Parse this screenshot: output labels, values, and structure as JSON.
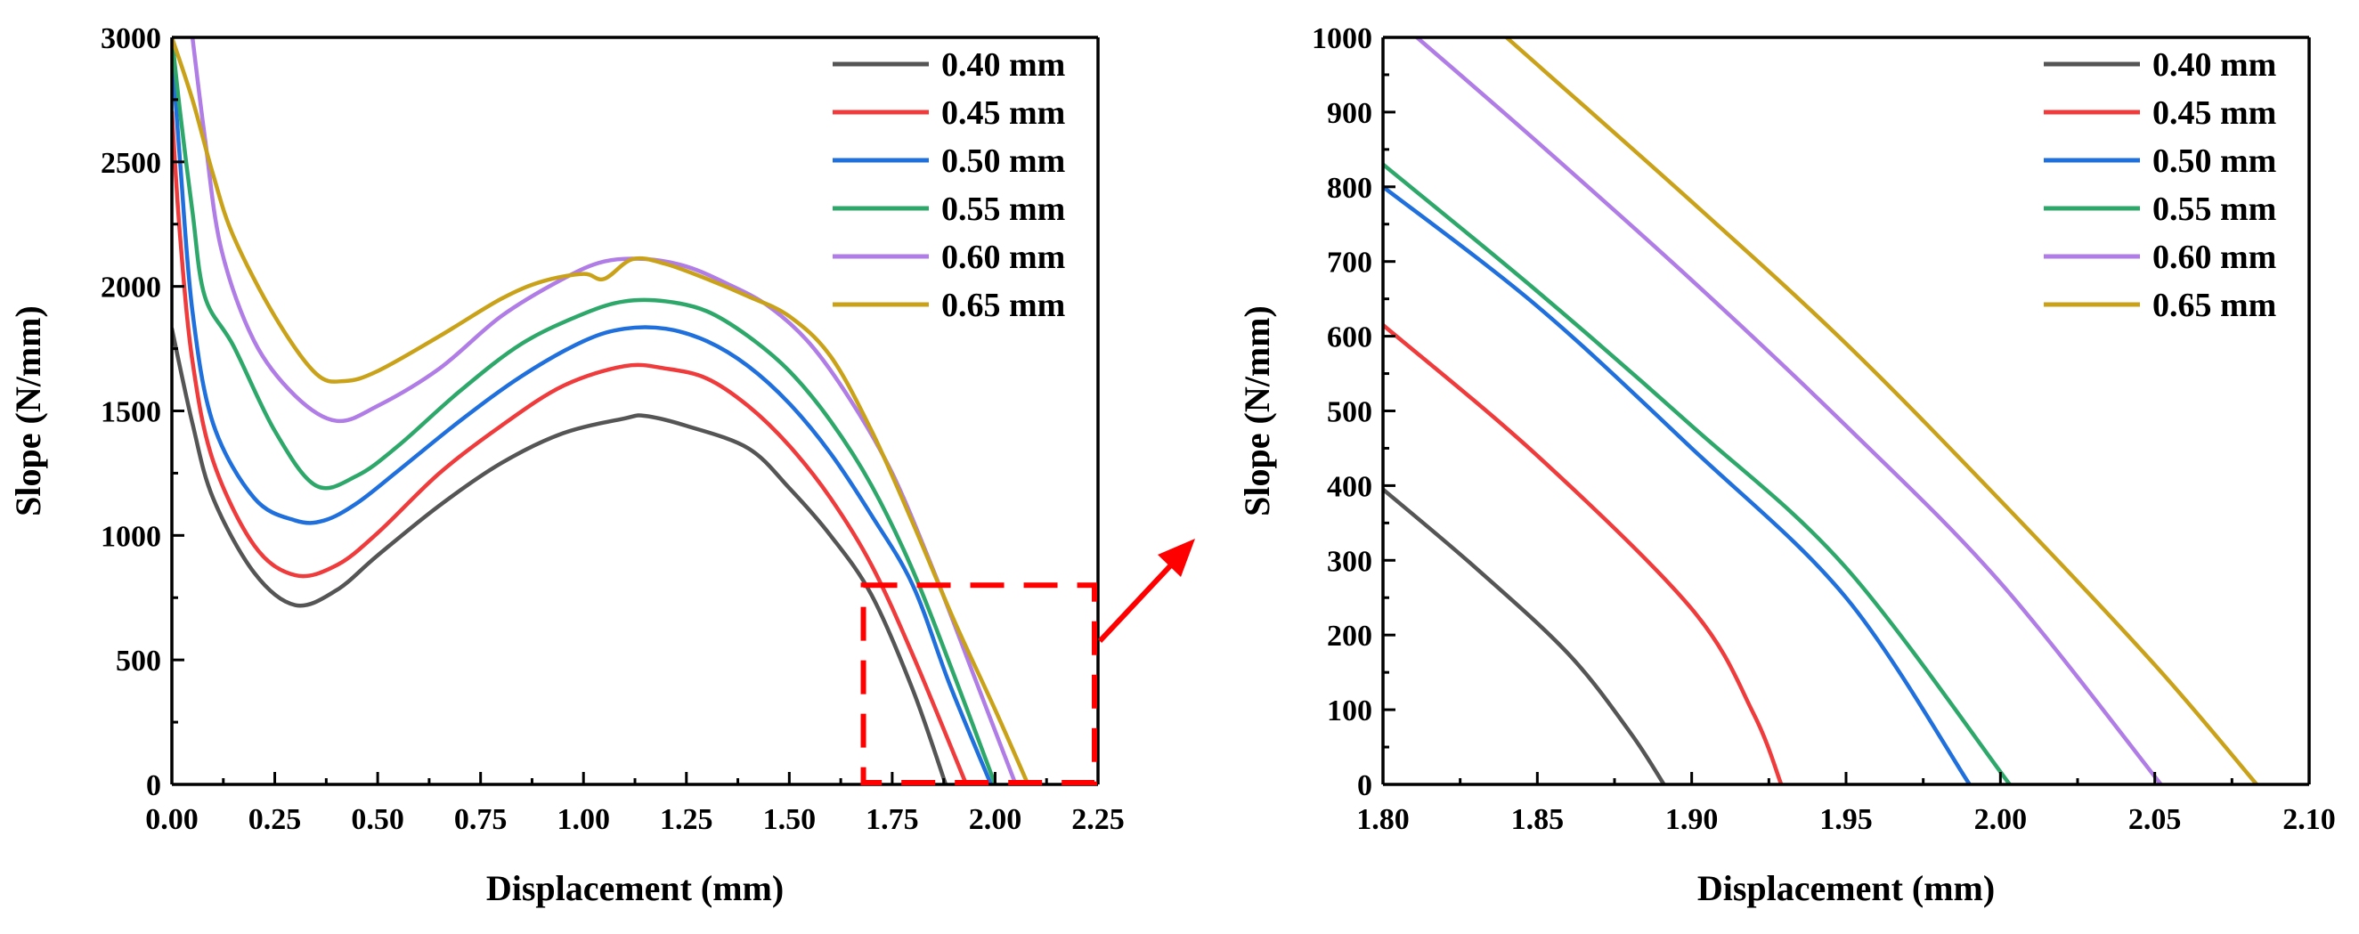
{
  "colors": {
    "s040": "#555555",
    "s045": "#ef3b3b",
    "s050": "#1f6fdc",
    "s055": "#2ea86a",
    "s060": "#b07ce6",
    "s065": "#c9a21a",
    "zoom": "#ff0000"
  },
  "chart_data": [
    {
      "type": "line",
      "xlabel": "Displacement (mm)",
      "ylabel": "Slope (N/mm)",
      "xlim": [
        0,
        2.25
      ],
      "ylim": [
        0,
        3000
      ],
      "xticks": [
        "0.00",
        "0.25",
        "0.50",
        "0.75",
        "1.00",
        "1.25",
        "1.50",
        "1.75",
        "2.00",
        "2.25"
      ],
      "yticks": [
        "0",
        "500",
        "1000",
        "1500",
        "2000",
        "2500",
        "3000"
      ],
      "legend": "top-right",
      "series": [
        {
          "name": "0.40 mm",
          "color": "#555555",
          "x": [
            0.0,
            0.05,
            0.1,
            0.2,
            0.3,
            0.4,
            0.5,
            0.65,
            0.8,
            0.95,
            1.1,
            1.15,
            1.25,
            1.4,
            1.5,
            1.6,
            1.7,
            1.8,
            1.88
          ],
          "y": [
            1830,
            1450,
            1150,
            850,
            720,
            780,
            920,
            1120,
            1290,
            1410,
            1470,
            1480,
            1440,
            1350,
            1190,
            1000,
            760,
            380,
            0
          ]
        },
        {
          "name": "0.45 mm",
          "color": "#ef3b3b",
          "x": [
            0.0,
            0.02,
            0.05,
            0.1,
            0.2,
            0.3,
            0.4,
            0.5,
            0.65,
            0.8,
            0.95,
            1.1,
            1.2,
            1.3,
            1.4,
            1.5,
            1.6,
            1.7,
            1.8,
            1.93
          ],
          "y": [
            2700,
            2200,
            1700,
            1300,
            960,
            840,
            880,
            1010,
            1250,
            1440,
            1600,
            1680,
            1670,
            1630,
            1520,
            1360,
            1150,
            880,
            520,
            0
          ]
        },
        {
          "name": "0.50 mm",
          "color": "#1f6fdc",
          "x": [
            0.0,
            0.02,
            0.05,
            0.1,
            0.2,
            0.3,
            0.37,
            0.45,
            0.55,
            0.7,
            0.85,
            1.0,
            1.1,
            1.2,
            1.3,
            1.4,
            1.5,
            1.6,
            1.7,
            1.8,
            1.89,
            1.99
          ],
          "y": [
            2950,
            2500,
            1900,
            1450,
            1150,
            1060,
            1060,
            1130,
            1260,
            1460,
            1640,
            1780,
            1830,
            1830,
            1780,
            1680,
            1530,
            1330,
            1080,
            800,
            400,
            0
          ]
        },
        {
          "name": "0.55 mm",
          "color": "#2ea86a",
          "x": [
            0.0,
            0.02,
            0.05,
            0.08,
            0.15,
            0.25,
            0.35,
            0.45,
            0.55,
            0.7,
            0.85,
            1.0,
            1.1,
            1.2,
            1.3,
            1.4,
            1.5,
            1.6,
            1.7,
            1.8,
            1.9,
            2.0
          ],
          "y": [
            3000,
            2700,
            2300,
            1960,
            1760,
            1420,
            1200,
            1240,
            1360,
            1580,
            1770,
            1890,
            1940,
            1940,
            1900,
            1800,
            1660,
            1460,
            1200,
            860,
            440,
            0
          ]
        },
        {
          "name": "0.60 mm",
          "color": "#b07ce6",
          "x": [
            0.05,
            0.08,
            0.12,
            0.2,
            0.3,
            0.4,
            0.5,
            0.65,
            0.8,
            0.95,
            1.05,
            1.15,
            1.25,
            1.35,
            1.45,
            1.55,
            1.65,
            1.75,
            1.85,
            1.95,
            2.05
          ],
          "y": [
            3000,
            2600,
            2150,
            1780,
            1560,
            1460,
            1520,
            1670,
            1880,
            2030,
            2100,
            2110,
            2080,
            2010,
            1920,
            1770,
            1540,
            1250,
            860,
            430,
            0
          ]
        },
        {
          "name": "0.65 mm",
          "color": "#c9a21a",
          "x": [
            0.0,
            0.05,
            0.1,
            0.15,
            0.25,
            0.35,
            0.42,
            0.5,
            0.65,
            0.8,
            0.9,
            1.0,
            1.05,
            1.12,
            1.2,
            1.3,
            1.4,
            1.5,
            1.6,
            1.7,
            1.8,
            1.9,
            2.0,
            2.08
          ],
          "y": [
            3000,
            2750,
            2450,
            2200,
            1880,
            1650,
            1620,
            1660,
            1800,
            1950,
            2020,
            2050,
            2030,
            2110,
            2090,
            2030,
            1960,
            1880,
            1720,
            1420,
            1050,
            660,
            300,
            0
          ]
        }
      ]
    },
    {
      "type": "line",
      "xlabel": "Displacement (mm)",
      "ylabel": "Slope (N/mm)",
      "xlim": [
        1.8,
        2.1
      ],
      "ylim": [
        0,
        1000
      ],
      "xticks": [
        "1.80",
        "1.85",
        "1.90",
        "1.95",
        "2.00",
        "2.05",
        "2.10"
      ],
      "yticks": [
        "0",
        "100",
        "200",
        "300",
        "400",
        "500",
        "600",
        "700",
        "800",
        "900",
        "1000"
      ],
      "legend": "top-right",
      "series": [
        {
          "name": "0.40 mm",
          "color": "#555555",
          "x": [
            1.8,
            1.83,
            1.86,
            1.88,
            1.891
          ],
          "y": [
            395,
            290,
            175,
            70,
            0
          ]
        },
        {
          "name": "0.45 mm",
          "color": "#ef3b3b",
          "x": [
            1.8,
            1.85,
            1.9,
            1.92,
            1.929
          ],
          "y": [
            615,
            440,
            235,
            95,
            0
          ]
        },
        {
          "name": "0.50 mm",
          "color": "#1f6fdc",
          "x": [
            1.8,
            1.85,
            1.9,
            1.95,
            1.99
          ],
          "y": [
            800,
            640,
            450,
            250,
            0
          ]
        },
        {
          "name": "0.55 mm",
          "color": "#2ea86a",
          "x": [
            1.8,
            1.85,
            1.9,
            1.95,
            2.003
          ],
          "y": [
            830,
            660,
            480,
            290,
            0
          ]
        },
        {
          "name": "0.60 mm",
          "color": "#b07ce6",
          "x": [
            1.811,
            1.85,
            1.9,
            1.95,
            2.0,
            2.052
          ],
          "y": [
            1000,
            860,
            675,
            480,
            270,
            0
          ]
        },
        {
          "name": "0.65 mm",
          "color": "#c9a21a",
          "x": [
            1.84,
            1.9,
            1.95,
            2.0,
            2.05,
            2.083
          ],
          "y": [
            1000,
            780,
            590,
            380,
            160,
            0
          ]
        }
      ]
    }
  ],
  "zoom_region": {
    "x": [
      1.68,
      2.25
    ],
    "y": [
      0,
      800
    ]
  }
}
